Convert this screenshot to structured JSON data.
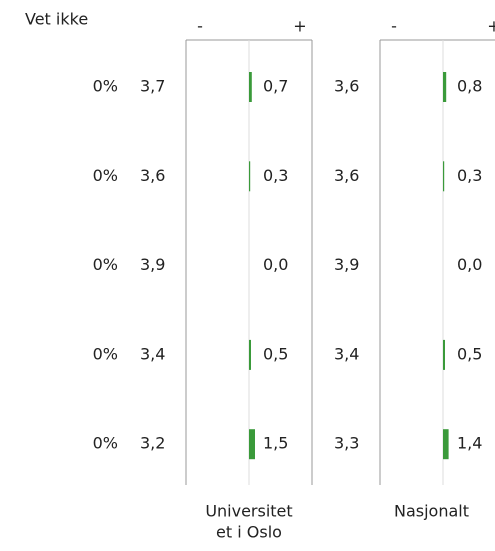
{
  "header": {
    "vet_ikke": "Vet ikke"
  },
  "groups": [
    {
      "label_lines": [
        "Universitet",
        "et i Oslo"
      ],
      "minus": "-",
      "plus": "+",
      "means": [
        "3,7",
        "3,6",
        "3,9",
        "3,4",
        "3,2"
      ],
      "diffs": [
        {
          "value": 0.7,
          "label": "0,7"
        },
        {
          "value": 0.3,
          "label": "0,3"
        },
        {
          "value": 0.0,
          "label": "0,0"
        },
        {
          "value": 0.5,
          "label": "0,5"
        },
        {
          "value": 1.5,
          "label": "1,5"
        }
      ]
    },
    {
      "label_lines": [
        "Nasjonalt"
      ],
      "minus": "-",
      "plus": "+",
      "means": [
        "3,6",
        "3,6",
        "3,9",
        "3,4",
        "3,3"
      ],
      "diffs": [
        {
          "value": 0.8,
          "label": "0,8"
        },
        {
          "value": 0.3,
          "label": "0,3"
        },
        {
          "value": 0.0,
          "label": "0,0"
        },
        {
          "value": 0.5,
          "label": "0,5"
        },
        {
          "value": 1.4,
          "label": "1,4"
        }
      ]
    }
  ],
  "vet_ikke_values": [
    "0%",
    "0%",
    "0%",
    "0%",
    "0%"
  ]
}
